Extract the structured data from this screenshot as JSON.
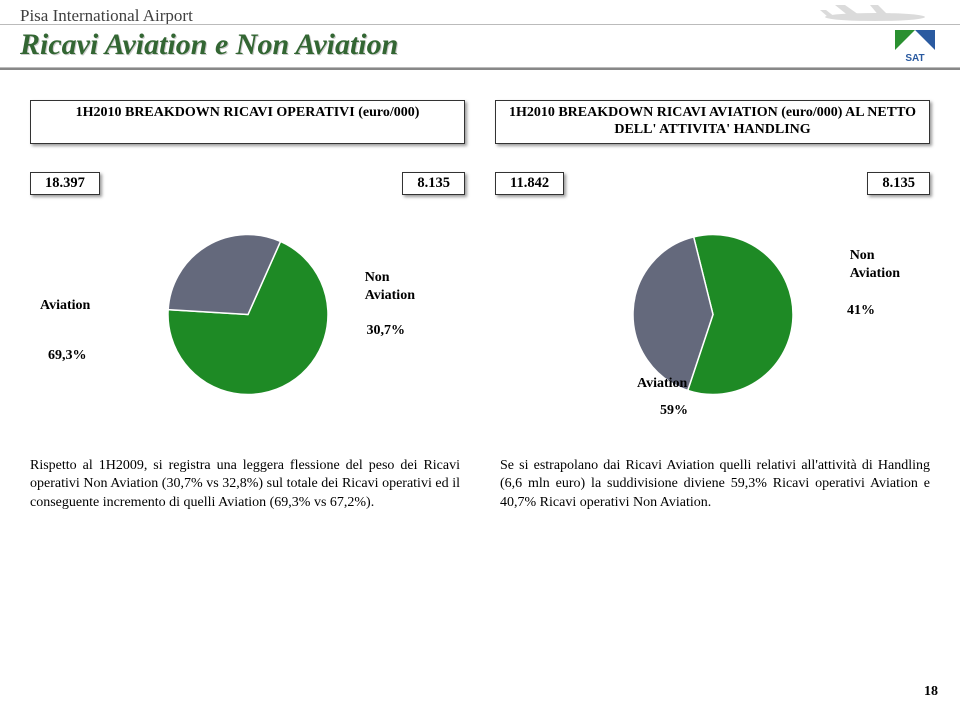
{
  "header": {
    "airport_name": "Pisa International Airport",
    "slide_title": "Ricavi Aviation e Non Aviation"
  },
  "subtitles": {
    "left": "1H2010 BREAKDOWN RICAVI OPERATIVI  (euro/000)",
    "right": "1H2010 BREAKDOWN RICAVI AVIATION (euro/000) AL NETTO DELL' ATTIVITA' HANDLING"
  },
  "values": {
    "left_a": "18.397",
    "left_b": "8.135",
    "right_a": "11.842",
    "right_b": "8.135"
  },
  "chart_left": {
    "type": "pie",
    "radius": 80,
    "slices": [
      {
        "label": "Aviation",
        "pct": "69,3%",
        "value": 69.3,
        "color": "#1e8a25"
      },
      {
        "label": "Non Aviation",
        "pct": "30,7%",
        "value": 30.7,
        "color": "#64697c"
      }
    ],
    "start_angle_deg": -66,
    "border_color": "#ffffff"
  },
  "chart_right": {
    "type": "pie",
    "radius": 80,
    "slices": [
      {
        "label": "Aviation",
        "pct": "59%",
        "value": 59,
        "color": "#1e8a25"
      },
      {
        "label": "Non Aviation",
        "pct": "41%",
        "value": 41,
        "color": "#64697c"
      }
    ],
    "start_angle_deg": -104,
    "border_color": "#ffffff"
  },
  "body": {
    "left": "Rispetto al 1H2009, si registra una leggera flessione del peso dei Ricavi operativi Non Aviation (30,7% vs 32,8%) sul totale dei Ricavi operativi ed il conseguente incremento di quelli Aviation (69,3% vs 67,2%).",
    "right": "Se si estrapolano dai Ricavi Aviation quelli relativi all'attività di Handling (6,6 mln euro) la suddivisione diviene 59,3% Ricavi operativi Aviation e 40,7% Ricavi operativi Non Aviation."
  },
  "page_number": "18",
  "colors": {
    "title_green": "#336633",
    "pie_green": "#1e8a25",
    "pie_gray": "#64697c",
    "logo_green": "#2a9030",
    "logo_blue": "#2a5aa0"
  }
}
